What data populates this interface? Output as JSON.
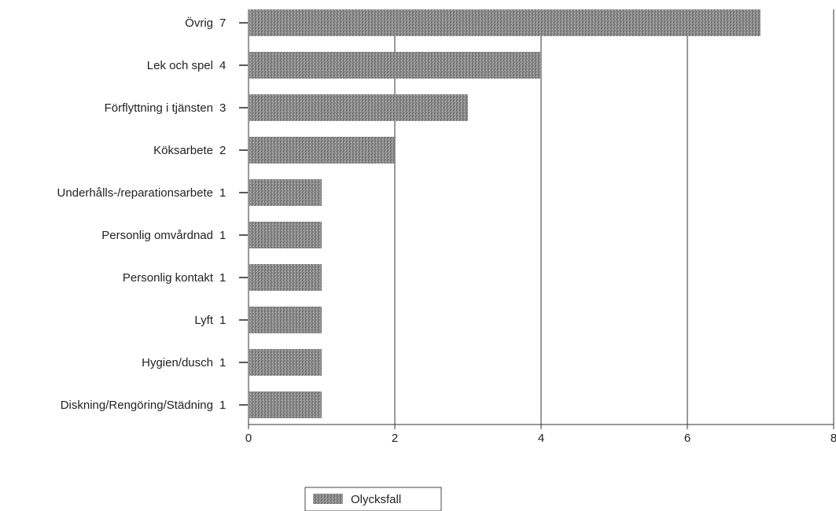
{
  "chart_data": {
    "type": "bar",
    "orientation": "horizontal",
    "categories": [
      "Övrig",
      "Lek och spel",
      "Förflyttning i tjänsten",
      "Köksarbete",
      "Underhålls-/reparationsarbete",
      "Personlig omvårdnad",
      "Personlig kontakt",
      "Lyft",
      "Hygien/dusch",
      "Diskning/Rengöring/Städning"
    ],
    "series": [
      {
        "name": "Olycksfall",
        "values": [
          7,
          4,
          3,
          2,
          1,
          1,
          1,
          1,
          1,
          1
        ]
      }
    ],
    "value_labels": [
      "7",
      "4",
      "3",
      "2",
      "1",
      "1",
      "1",
      "1",
      "1",
      "1"
    ],
    "xlim": [
      0,
      8
    ],
    "x_ticks": [
      0,
      2,
      4,
      6,
      8
    ],
    "x_tick_labels": [
      "0",
      "2",
      "4",
      "6",
      "8"
    ],
    "xlabel": "",
    "ylabel": "",
    "title": "",
    "grid": "vertical",
    "legend_position": "bottom",
    "colors": {
      "bar_fill": "#8a8a8a",
      "bar_stipple_dark": "#555555",
      "bar_stipple_light": "#c4c4c4",
      "grid": "#333333",
      "text": "#222222"
    }
  },
  "legend": {
    "label": "Olycksfall"
  }
}
